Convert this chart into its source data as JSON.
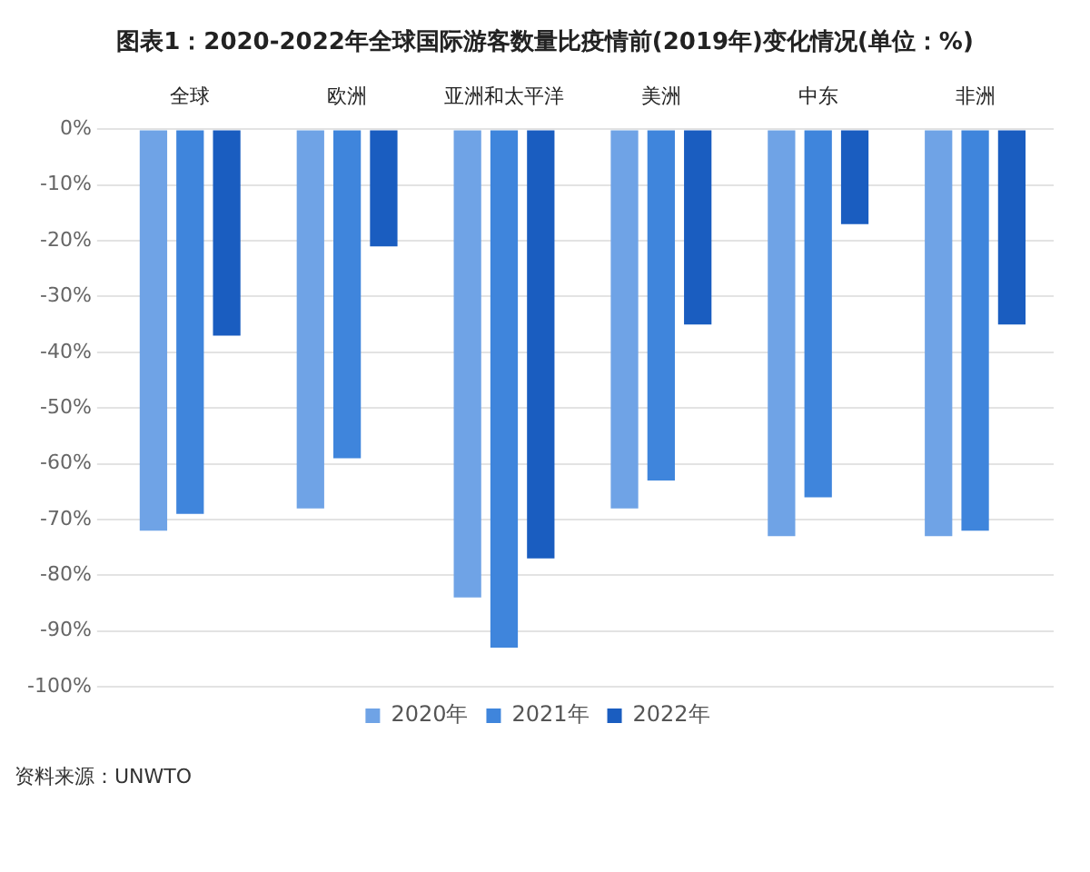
{
  "chart_data": {
    "type": "bar",
    "title": "图表1：2020-2022年全球国际游客数量比疫情前(2019年)变化情况(单位：%)",
    "categories": [
      "全球",
      "欧洲",
      "亚洲和太平洋",
      "美洲",
      "中东",
      "非洲"
    ],
    "series": [
      {
        "name": "2020年",
        "color": "#6fa3e6",
        "values": [
          -72,
          -68,
          -84,
          -68,
          -73,
          -73
        ]
      },
      {
        "name": "2021年",
        "color": "#3f85dc",
        "values": [
          -69,
          -59,
          -93,
          -63,
          -66,
          -72
        ]
      },
      {
        "name": "2022年",
        "color": "#1a5dc0",
        "values": [
          -37,
          -21,
          -77,
          -35,
          -17,
          -35
        ]
      }
    ],
    "ylim": [
      -100,
      0
    ],
    "yticks": [
      {
        "value": 0,
        "label": "0%"
      },
      {
        "value": -10,
        "label": "-10%"
      },
      {
        "value": -20,
        "label": "-20%"
      },
      {
        "value": -30,
        "label": "-30%"
      },
      {
        "value": -40,
        "label": "-40%"
      },
      {
        "value": -50,
        "label": "-50%"
      },
      {
        "value": -60,
        "label": "-60%"
      },
      {
        "value": -70,
        "label": "-70%"
      },
      {
        "value": -80,
        "label": "-80%"
      },
      {
        "value": -90,
        "label": "-90%"
      },
      {
        "value": -100,
        "label": "-100%"
      }
    ],
    "grid": "y",
    "legend": "bottom",
    "annotations": [
      "资料来源：UNWTO"
    ]
  }
}
